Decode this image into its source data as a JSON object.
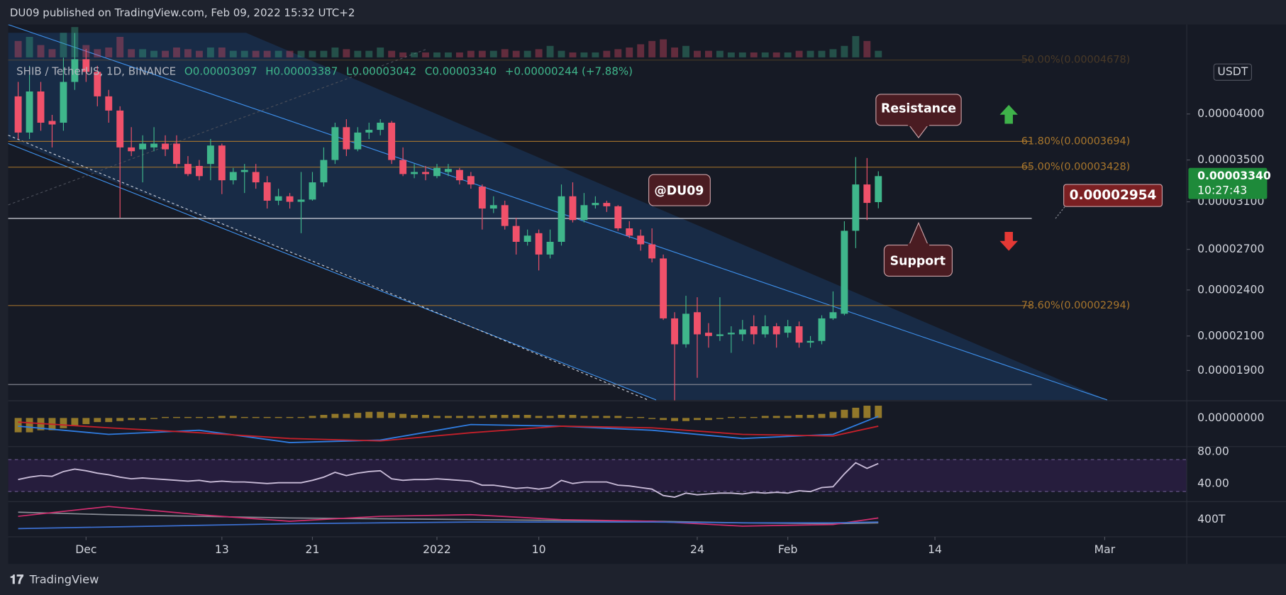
{
  "header": {
    "text": "DU09 published on TradingView.com, Feb 09, 2022 15:32 UTC+2"
  },
  "legend": {
    "symbol": "SHIB / TetherUS, 1D, BINANCE",
    "open": "O0.00003097",
    "high": "H0.00003387",
    "low": "L0.00003042",
    "close": "C0.00003340",
    "change": "+0.00000244 (+7.88%)"
  },
  "currency": "USDT",
  "footer": {
    "brand": "TradingView"
  },
  "annotations": {
    "resistance": "Resistance",
    "support": "Support",
    "author": "@DU09"
  },
  "chart_data": {
    "type": "candlestick",
    "log": true,
    "xlim": [
      -0.88,
      103.25
    ],
    "xticks": [
      {
        "value": 6,
        "label": "Dec"
      },
      {
        "value": 18,
        "label": "13"
      },
      {
        "value": 26,
        "label": "21"
      },
      {
        "value": 37,
        "label": "2022"
      },
      {
        "value": 46,
        "label": "10"
      },
      {
        "value": 60,
        "label": "24"
      },
      {
        "value": 68,
        "label": "Feb"
      },
      {
        "value": 81,
        "label": "14"
      },
      {
        "value": 96,
        "label": "Mar"
      }
    ],
    "ylim": [
      1.74e-05,
      5.185e-05
    ],
    "yticks": [
      {
        "value": 4e-05,
        "label": "0.00004000"
      },
      {
        "value": 3.5e-05,
        "label": "0.00003500"
      },
      {
        "value": 3.1e-05,
        "label": "0.00003100"
      },
      {
        "value": 2.7e-05,
        "label": "0.00002700"
      },
      {
        "value": 2.4e-05,
        "label": "0.00002400"
      },
      {
        "value": 2.1e-05,
        "label": "0.00002100"
      },
      {
        "value": 1.9e-05,
        "label": "0.00001900"
      }
    ],
    "up_color": "#3fb68b",
    "down_color": "#f0516a",
    "open": [
      4.21e-05,
      3.79e-05,
      4.27e-05,
      3.92e-05,
      3.9e-05,
      4.39e-05,
      4.69e-05,
      4.52e-05,
      4.21e-05,
      4.04e-05,
      3.63e-05,
      3.61e-05,
      3.63e-05,
      3.67e-05,
      3.67e-05,
      3.46e-05,
      3.44e-05,
      3.46e-05,
      3.65e-05,
      3.3e-05,
      3.38e-05,
      3.38e-05,
      3.28e-05,
      3.11e-05,
      3.15e-05,
      3.1e-05,
      3.12e-05,
      3.28e-05,
      3.5e-05,
      3.85e-05,
      3.61e-05,
      3.79e-05,
      3.82e-05,
      3.9e-05,
      3.5e-05,
      3.36e-05,
      3.38e-05,
      3.34e-05,
      3.38e-05,
      3.4e-05,
      3.34e-05,
      3.24e-05,
      3.04e-05,
      3.07e-05,
      2.89e-05,
      2.76e-05,
      2.83e-05,
      2.66e-05,
      2.76e-05,
      3.15e-05,
      2.94e-05,
      3.07e-05,
      3.09e-05,
      3.06e-05,
      2.87e-05,
      2.81e-05,
      2.74e-05,
      2.63e-05,
      2.21e-05,
      2.05e-05,
      2.25e-05,
      2.12e-05,
      2.1e-05,
      2.11e-05,
      2.11e-05,
      2.16e-05,
      2.11e-05,
      2.16e-05,
      2.12e-05,
      2.16e-05,
      2.06e-05,
      2.07e-05,
      2.21e-05,
      2.24e-05,
      2.85e-05,
      3.26e-05,
      3.097e-05
    ],
    "high": [
      4.39e-05,
      4.6e-05,
      4.39e-05,
      3.99e-05,
      4.71e-05,
      5.06e-05,
      4.83e-05,
      4.6e-05,
      4.29e-05,
      4.09e-05,
      3.85e-05,
      3.76e-05,
      3.85e-05,
      3.76e-05,
      3.76e-05,
      3.54e-05,
      3.5e-05,
      3.72e-05,
      3.67e-05,
      3.42e-05,
      3.46e-05,
      3.46e-05,
      3.34e-05,
      3.22e-05,
      3.18e-05,
      3.38e-05,
      3.38e-05,
      3.63e-05,
      3.9e-05,
      3.94e-05,
      3.85e-05,
      3.9e-05,
      3.94e-05,
      3.92e-05,
      3.63e-05,
      3.46e-05,
      3.44e-05,
      3.46e-05,
      3.46e-05,
      3.42e-05,
      3.38e-05,
      3.26e-05,
      3.15e-05,
      3.11e-05,
      2.96e-05,
      2.86e-05,
      2.86e-05,
      2.86e-05,
      3.26e-05,
      3.28e-05,
      3.18e-05,
      3.15e-05,
      3.11e-05,
      3.07e-05,
      2.93e-05,
      2.86e-05,
      2.87e-05,
      2.66e-05,
      2.25e-05,
      2.36e-05,
      2.35e-05,
      2.18e-05,
      2.35e-05,
      2.16e-05,
      2.2e-05,
      2.23e-05,
      2.23e-05,
      2.18e-05,
      2.2e-05,
      2.19e-05,
      2.1e-05,
      2.23e-05,
      2.39e-05,
      2.93e-05,
      3.53e-05,
      3.52e-05,
      3.387e-05
    ],
    "low": [
      3.72e-05,
      3.72e-05,
      3.81e-05,
      3.63e-05,
      3.81e-05,
      4.29e-05,
      4.39e-05,
      4.09e-05,
      3.9e-05,
      2.96e-05,
      3.54e-05,
      3.28e-05,
      3.59e-05,
      3.54e-05,
      3.42e-05,
      3.34e-05,
      3.3e-05,
      3.3e-05,
      3.17e-05,
      3.26e-05,
      3.18e-05,
      3.22e-05,
      3.04e-05,
      3.07e-05,
      3.04e-05,
      2.83e-05,
      3.11e-05,
      3.24e-05,
      3.46e-05,
      3.54e-05,
      3.59e-05,
      3.72e-05,
      3.76e-05,
      3.46e-05,
      3.34e-05,
      3.32e-05,
      3.3e-05,
      3.32e-05,
      3.34e-05,
      3.26e-05,
      3.22e-05,
      2.86e-05,
      3e-05,
      2.86e-05,
      2.66e-05,
      2.73e-05,
      2.54e-05,
      2.63e-05,
      2.73e-05,
      2.92e-05,
      2.92e-05,
      3.04e-05,
      3.01e-05,
      2.85e-05,
      2.79e-05,
      2.69e-05,
      2.6e-05,
      2.2e-05,
      1.74e-05,
      2.03e-05,
      1.86e-05,
      2.03e-05,
      2.07e-05,
      2e-05,
      2.07e-05,
      2.05e-05,
      2.09e-05,
      2.03e-05,
      2.09e-05,
      2.03e-05,
      2.03e-05,
      2.05e-05,
      2.2e-05,
      2.23e-05,
      2.71e-05,
      2.94e-05,
      3.042e-05
    ],
    "close": [
      3.79e-05,
      4.27e-05,
      3.9e-05,
      3.88e-05,
      4.39e-05,
      4.69e-05,
      4.52e-05,
      4.21e-05,
      4.04e-05,
      3.63e-05,
      3.59e-05,
      3.67e-05,
      3.67e-05,
      3.61e-05,
      3.46e-05,
      3.36e-05,
      3.34e-05,
      3.65e-05,
      3.3e-05,
      3.38e-05,
      3.4e-05,
      3.28e-05,
      3.11e-05,
      3.15e-05,
      3.1e-05,
      3.12e-05,
      3.28e-05,
      3.5e-05,
      3.85e-05,
      3.61e-05,
      3.79e-05,
      3.82e-05,
      3.9e-05,
      3.5e-05,
      3.36e-05,
      3.38e-05,
      3.36e-05,
      3.42e-05,
      3.41e-05,
      3.3e-05,
      3.26e-05,
      3.04e-05,
      3.07e-05,
      2.89e-05,
      2.76e-05,
      2.81e-05,
      2.66e-05,
      2.76e-05,
      3.15e-05,
      2.94e-05,
      3.07e-05,
      3.09e-05,
      3.06e-05,
      2.87e-05,
      2.81e-05,
      2.74e-05,
      2.63e-05,
      2.21e-05,
      2.05e-05,
      2.24e-05,
      2.11e-05,
      2.1e-05,
      2.11e-05,
      2.12e-05,
      2.14e-05,
      2.11e-05,
      2.16e-05,
      2.11e-05,
      2.16e-05,
      2.06e-05,
      2.07e-05,
      2.21e-05,
      2.25e-05,
      2.85e-05,
      3.26e-05,
      3.09e-05,
      3.34e-05
    ],
    "volume": {
      "ylim": [
        0,
        40
      ],
      "values": [
        20,
        25,
        15,
        10,
        30,
        37,
        15,
        10,
        12,
        25,
        10,
        10,
        8,
        8,
        12,
        10,
        8,
        12,
        12,
        8,
        8,
        8,
        8,
        8,
        8,
        8,
        8,
        8,
        12,
        10,
        8,
        8,
        12,
        8,
        6,
        6,
        6,
        6,
        6,
        6,
        8,
        8,
        8,
        10,
        8,
        8,
        10,
        14,
        8,
        6,
        6,
        6,
        8,
        10,
        12,
        16,
        20,
        22,
        12,
        14,
        8,
        8,
        8,
        6,
        6,
        6,
        6,
        6,
        6,
        8,
        8,
        8,
        10,
        14,
        26,
        20,
        8
      ]
    },
    "fib_levels": [
      {
        "value": 4.678e-05,
        "label": "50.00%(0.00004678)"
      },
      {
        "value": 3.694e-05,
        "label": "61.80%(0.00003694)"
      },
      {
        "value": 3.428e-05,
        "label": "65.00%(0.00003428)"
      },
      {
        "value": 2.294e-05,
        "label": "78.60%(0.00002294)"
      }
    ],
    "fib_color": "#a8762c",
    "levels": [
      {
        "value": 2.954e-05,
        "label": "0.00002954"
      },
      {
        "value": 1.824e-05
      }
    ],
    "last_price": {
      "value": 3.34e-05,
      "label": "0.00003340",
      "countdown": "10:27:43"
    },
    "macd": {
      "ylim": [
        -1.4e-06,
        8.4e-07
      ],
      "yticks": [
        {
          "value": 0,
          "label": "0.00000000"
        }
      ],
      "histogram": [
        -7e-07,
        -7e-07,
        -6e-07,
        -6e-07,
        -5e-07,
        -4e-07,
        -3e-07,
        -2e-07,
        -2e-07,
        -1.5e-07,
        -1e-07,
        -1e-07,
        -5e-08,
        5e-08,
        5e-08,
        5e-08,
        5e-08,
        5e-08,
        1e-07,
        1e-07,
        5e-08,
        5e-08,
        5e-08,
        5e-08,
        5e-08,
        5e-08,
        1e-07,
        1.5e-07,
        2e-07,
        2e-07,
        2.5e-07,
        3e-07,
        3e-07,
        2.5e-07,
        2e-07,
        1.5e-07,
        1.5e-07,
        1e-07,
        1e-07,
        1e-07,
        1e-07,
        1e-07,
        1.5e-07,
        1.5e-07,
        1.5e-07,
        1.5e-07,
        1e-07,
        1e-07,
        1.5e-07,
        1.5e-07,
        1e-07,
        1e-07,
        1e-07,
        1e-07,
        5e-08,
        5e-08,
        -5e-08,
        -1e-07,
        -1.5e-07,
        -1.5e-07,
        -1e-07,
        -1e-07,
        -5e-08,
        5e-08,
        5e-08,
        5e-08,
        1e-07,
        1e-07,
        1e-07,
        1.5e-07,
        1.5e-07,
        2e-07,
        3e-07,
        4e-07,
        5e-07,
        6e-07,
        6e-07
      ],
      "x": [
        0,
        8,
        16,
        24,
        32,
        40,
        48,
        56,
        64,
        72,
        76
      ],
      "series": [
        {
          "name": "MACD",
          "color": "#2f7ce0",
          "values": [
            -4e-07,
            -8e-07,
            -6e-07,
            -1.2e-06,
            -1.08e-06,
            -3.2e-07,
            -4e-07,
            -6e-07,
            -1e-06,
            -8e-07,
            8e-08
          ]
        },
        {
          "name": "Signal",
          "color": "#c4202a",
          "values": [
            -2e-07,
            -4.8e-07,
            -7.2e-07,
            -1e-06,
            -1.12e-06,
            -7.2e-07,
            -4e-07,
            -4.8e-07,
            -8e-07,
            -8.8e-07,
            -4e-07
          ]
        }
      ]
    },
    "rsi": {
      "ylim": [
        17.44,
        86.15
      ],
      "yticks": [
        {
          "value": 80,
          "label": "80.00"
        },
        {
          "value": 40,
          "label": "40.00"
        }
      ],
      "band": [
        30,
        70
      ],
      "color": "#c9bcd8",
      "values": [
        45,
        48,
        50,
        49,
        55,
        58,
        56,
        53,
        51,
        48,
        46,
        47,
        46,
        45,
        44,
        43,
        44,
        42,
        43,
        42,
        42,
        41,
        40,
        41,
        41,
        41,
        44,
        48,
        54,
        50,
        53,
        55,
        56,
        46,
        44,
        45,
        45,
        46,
        45,
        44,
        43,
        38,
        38,
        36,
        34,
        35,
        33,
        35,
        44,
        40,
        42,
        42,
        42,
        38,
        37,
        35,
        33,
        25,
        23,
        28,
        26,
        27,
        28,
        28,
        27,
        29,
        28,
        29,
        28,
        31,
        30,
        35,
        36,
        52,
        66,
        59,
        65
      ]
    },
    "lower": {
      "ylim": [
        190000000000000.0,
        620000000000000.0
      ],
      "yticks": [
        {
          "value": 400000000000000.0,
          "label": "400T"
        }
      ],
      "x": [
        0,
        8,
        16,
        24,
        32,
        40,
        48,
        56,
        64,
        72,
        76
      ],
      "series": [
        {
          "color": "#8a8d96",
          "values": [
            490000000000000.0,
            460000000000000.0,
            440000000000000.0,
            420000000000000.0,
            410000000000000.0,
            400000000000000.0,
            390000000000000.0,
            380000000000000.0,
            360000000000000.0,
            350000000000000.0,
            360000000000000.0
          ]
        },
        {
          "color": "#d12d6e",
          "values": [
            440000000000000.0,
            560000000000000.0,
            460000000000000.0,
            380000000000000.0,
            440000000000000.0,
            460000000000000.0,
            400000000000000.0,
            380000000000000.0,
            320000000000000.0,
            340000000000000.0,
            420000000000000.0
          ]
        },
        {
          "color": "#3c6fd0",
          "values": [
            290000000000000.0,
            310000000000000.0,
            330000000000000.0,
            350000000000000.0,
            360000000000000.0,
            370000000000000.0,
            370000000000000.0,
            370000000000000.0,
            360000000000000.0,
            360000000000000.0,
            370000000000000.0
          ]
        }
      ]
    }
  }
}
